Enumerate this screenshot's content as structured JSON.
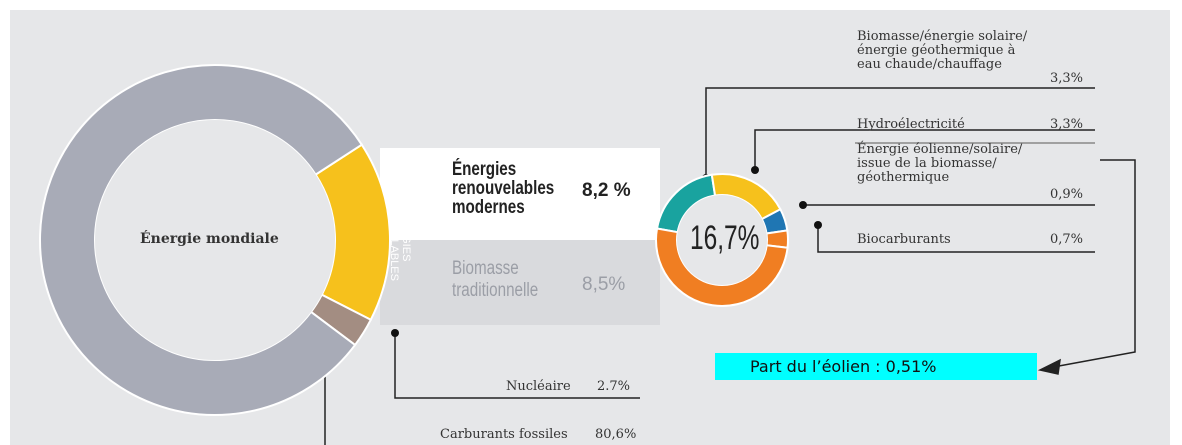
{
  "chart_data": [
    {
      "type": "pie",
      "donut": true,
      "center_label": "Énergie mondiale",
      "segment_label": "ÉNERGIES\nRENOUVELABLES",
      "categories": [
        "Énergies renouvelables",
        "Nucléaire",
        "Carburants fossiles"
      ],
      "values": [
        16.7,
        2.7,
        80.6
      ],
      "value_labels": [
        "16,7%",
        "2.7%",
        "80,6%"
      ],
      "colors": [
        "#f6c11c",
        "#a38d82",
        "#a8abb7"
      ]
    },
    {
      "type": "pie",
      "donut": true,
      "groups": [
        {
          "name": "Énergies\nrenouvelables\nmodernes",
          "value": 8.2,
          "value_label": "8,2 %"
        },
        {
          "name": "Biomasse\ntraditionnelle",
          "value": 8.5,
          "value_label": "8,5%",
          "color": "#f07e22"
        }
      ],
      "categories": [
        "Biomasse/énergie solaire/\nénergie géothermique à\neau chaude/chauffage",
        "Hydroélectricité",
        "Énergie éolienne/solaire/\nissue de la biomasse/\ngéothermique",
        "Biocarburants"
      ],
      "values": [
        3.3,
        3.3,
        0.9,
        0.7
      ],
      "value_labels": [
        "3,3%",
        "3,3%",
        "0,9%",
        "0,7%"
      ],
      "colors": [
        "#19a39f",
        "#f6c11c",
        "#1f76b3",
        "#f07e22"
      ]
    }
  ],
  "annotation": "Part du l’éolien : 0,51%"
}
